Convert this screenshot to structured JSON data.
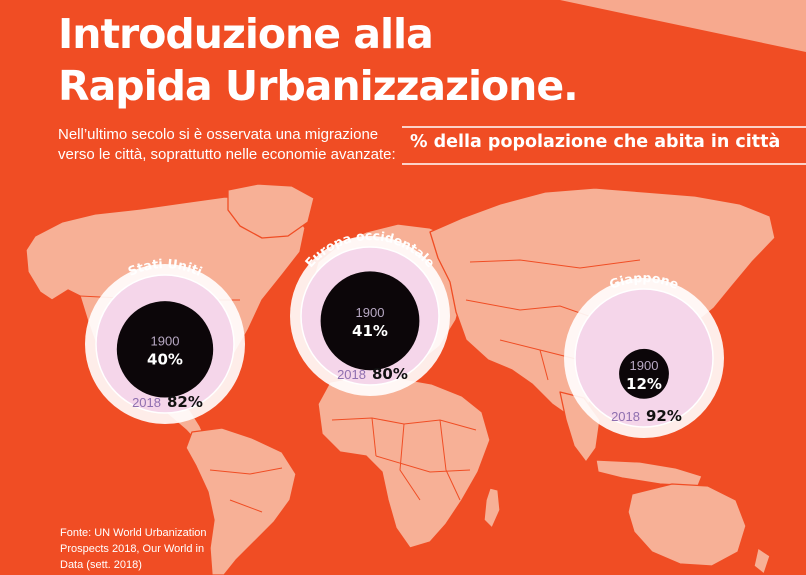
{
  "title_lines": [
    "Introduzione alla",
    "Rapida Urbanizzazione."
  ],
  "subtitle_lines": [
    "Nell’ultimo secolo si è osservata una migrazione",
    "verso le città, soprattutto nelle economie avanzate:"
  ],
  "legend_label": "% della popolazione che abita in città",
  "source_lines": [
    "Fonte: UN World Urbanization",
    "Prospects 2018, Our World in",
    "Data (sett. 2018)"
  ],
  "colors": {
    "background": "#f04d24",
    "map": "#f7b096",
    "map_borders": "#f04d24",
    "ring": "#f5d6ea",
    "disc_inner": "#0c0609",
    "year_label_1900": "#b8a9c4",
    "year_label_2018": "#8f6fb0",
    "value_text": "#ffffff",
    "value_2018": "#111111"
  },
  "chart_data": {
    "type": "nested-circle-comparison",
    "title": "% della popolazione che abita in città",
    "unit": "%",
    "years": [
      "1900",
      "2018"
    ],
    "regions": [
      {
        "name": "Stati Uniti",
        "year_a": "1900",
        "value_a": 40,
        "label_a": "40%",
        "year_b": "2018",
        "value_b": 82,
        "label_b": "82%"
      },
      {
        "name": "Europa occidentale",
        "year_a": "1900",
        "value_a": 41,
        "label_a": "41%",
        "year_b": "2018",
        "value_b": 80,
        "label_b": "80%"
      },
      {
        "name": "Giappone",
        "year_a": "1900",
        "value_a": 12,
        "label_a": "12%",
        "year_b": "2018",
        "value_b": 92,
        "label_b": "92%"
      }
    ]
  }
}
